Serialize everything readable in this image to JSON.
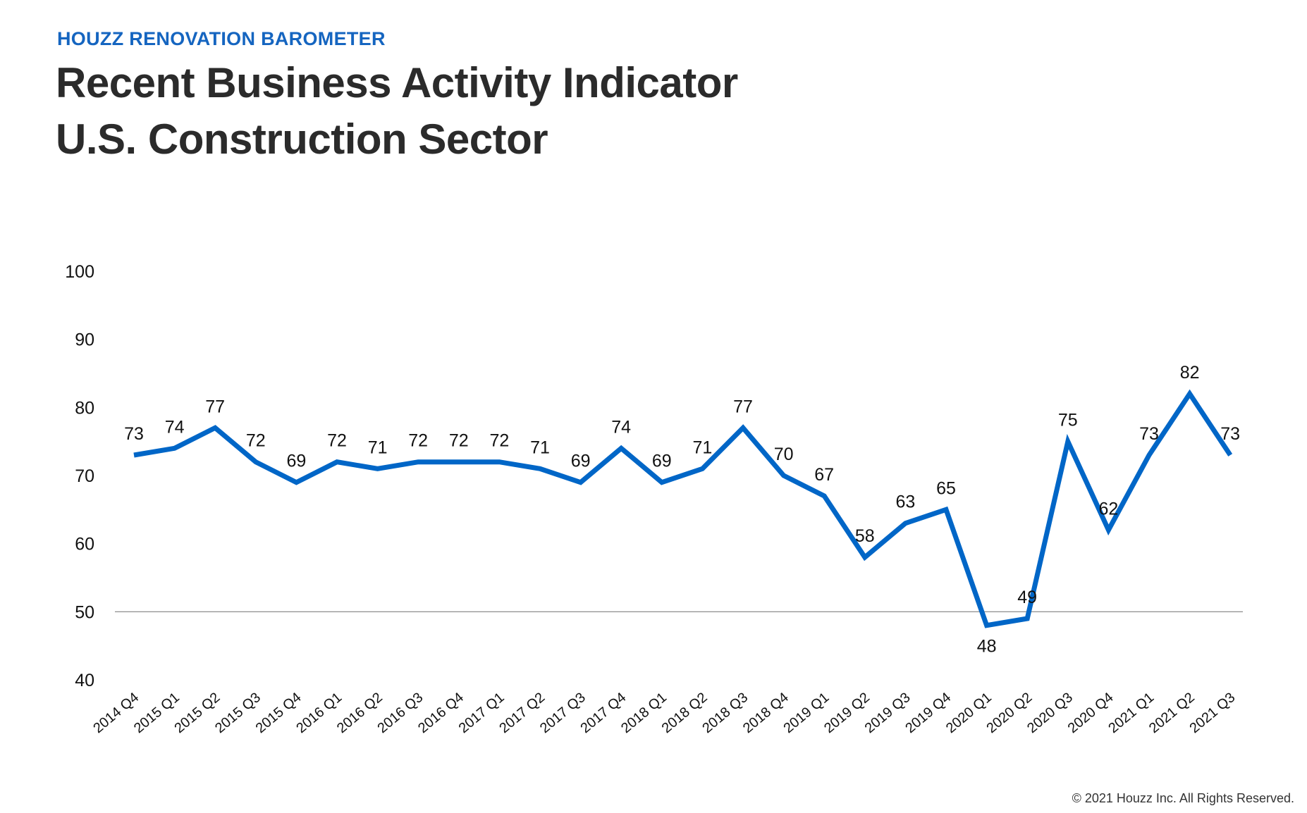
{
  "header": {
    "kicker": "HOUZZ RENOVATION BAROMETER",
    "title_line1": "Recent Business Activity Indicator",
    "title_line2": "U.S. Construction Sector"
  },
  "footer": {
    "copyright": "© 2021 Houzz Inc. All Rights Reserved."
  },
  "colors": {
    "line": "#0066c7",
    "baseline": "#808080"
  },
  "chart_data": {
    "type": "line",
    "ylim": [
      40,
      100
    ],
    "yticks": [
      40,
      50,
      60,
      70,
      80,
      90,
      100
    ],
    "baseline": 50,
    "grid": false,
    "legend": "none",
    "categories": [
      "2014 Q4",
      "2015 Q1",
      "2015 Q2",
      "2015 Q3",
      "2015 Q4",
      "2016 Q1",
      "2016 Q2",
      "2016 Q3",
      "2016 Q4",
      "2017 Q1",
      "2017 Q2",
      "2017 Q3",
      "2017 Q4",
      "2018 Q1",
      "2018 Q2",
      "2018 Q3",
      "2018 Q4",
      "2019 Q1",
      "2019 Q2",
      "2019 Q3",
      "2019 Q4",
      "2020 Q1",
      "2020 Q2",
      "2020 Q3",
      "2020 Q4",
      "2021 Q1",
      "2021 Q2",
      "2021 Q3"
    ],
    "series": [
      {
        "values": [
          73,
          74,
          77,
          72,
          69,
          72,
          71,
          72,
          72,
          72,
          71,
          69,
          74,
          69,
          71,
          77,
          70,
          67,
          58,
          63,
          65,
          48,
          49,
          75,
          62,
          73,
          82,
          73
        ],
        "labels": [
          "73",
          "74",
          "77",
          "72",
          "69",
          "72",
          "71",
          "72",
          "72",
          "72",
          "71",
          "69",
          "74",
          "69",
          "71",
          "77",
          "70",
          "67",
          "58",
          "63",
          "65",
          "48",
          "49",
          "75",
          "62",
          "73",
          "82",
          "73"
        ]
      }
    ]
  }
}
